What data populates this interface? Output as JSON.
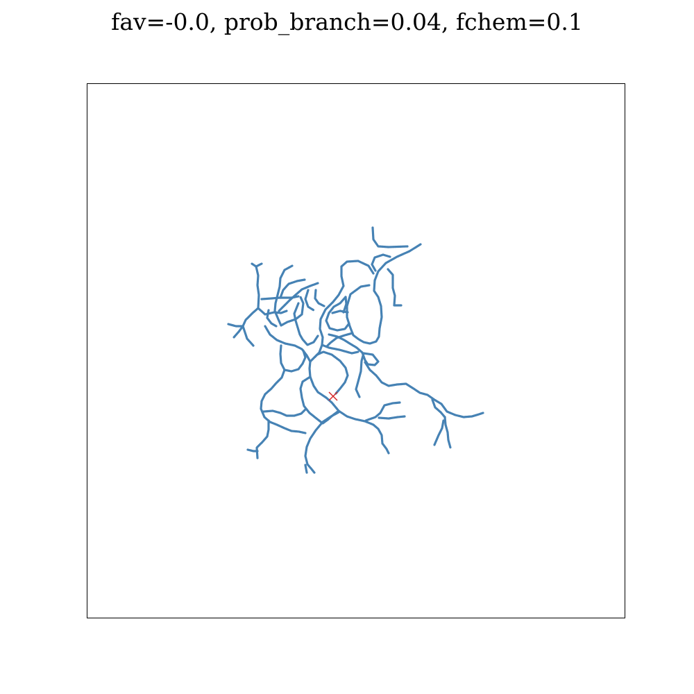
{
  "title": "fav=-0.0, prob_branch=0.04, fchem=0.1",
  "colors": {
    "branch": "#4682b4",
    "marker": "#d62728",
    "frame": "#000000"
  },
  "plot": {
    "axes_ticks": false,
    "marker_symbol": "x"
  }
}
